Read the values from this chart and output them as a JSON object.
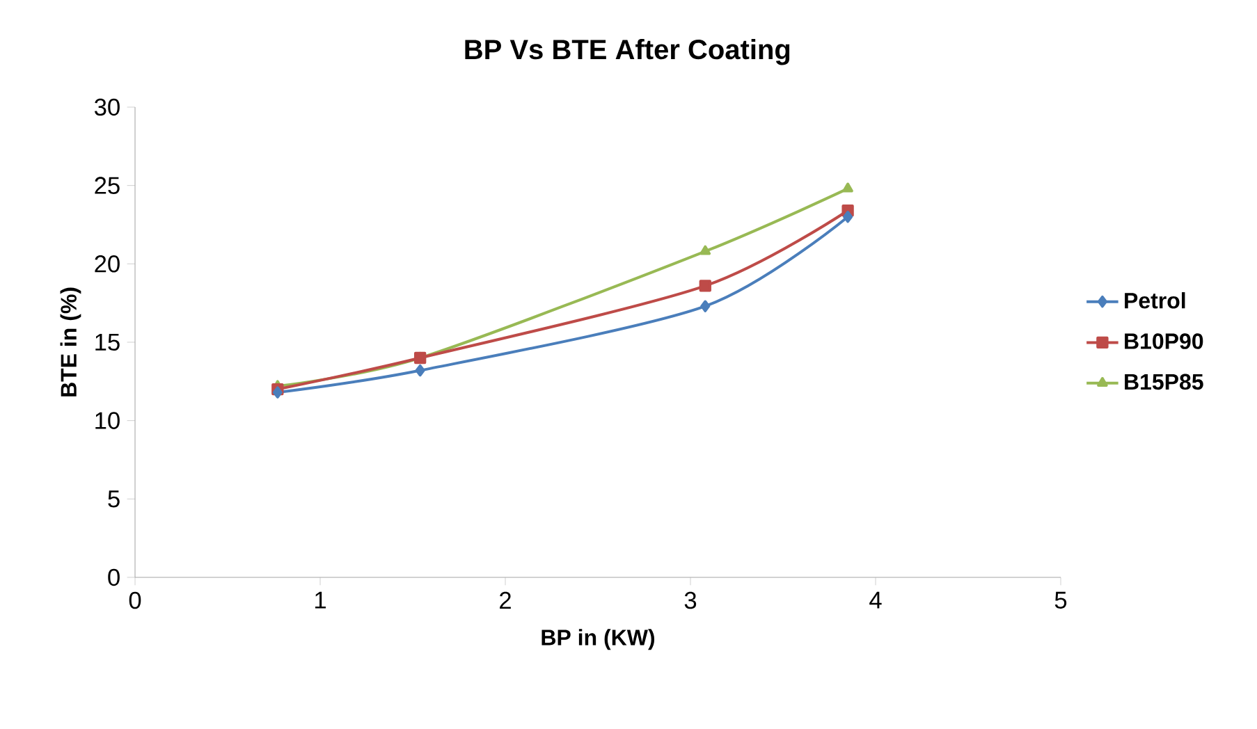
{
  "chart_data": {
    "type": "line",
    "title": "BP Vs BTE After Coating",
    "xlabel": "BP in (KW)",
    "ylabel": "BTE in (%)",
    "x": [
      0.77,
      1.54,
      3.08,
      3.85
    ],
    "series": [
      {
        "name": "Petrol",
        "color": "#4a7ebb",
        "marker": "diamond",
        "values": [
          11.8,
          13.2,
          17.3,
          23.0
        ]
      },
      {
        "name": "B10P90",
        "color": "#be4b48",
        "marker": "square",
        "values": [
          12.0,
          14.0,
          18.6,
          23.4
        ]
      },
      {
        "name": "B15P85",
        "color": "#98b954",
        "marker": "triangle",
        "values": [
          12.2,
          14.0,
          20.8,
          24.8
        ]
      }
    ],
    "xlim": [
      0,
      5
    ],
    "xticks": [
      0,
      1,
      2,
      3,
      4,
      5
    ],
    "ylim": [
      0,
      30
    ],
    "yticks": [
      0,
      5,
      10,
      15,
      20,
      25,
      30
    ],
    "grid": false,
    "legend": "right",
    "line_style": "solid"
  }
}
